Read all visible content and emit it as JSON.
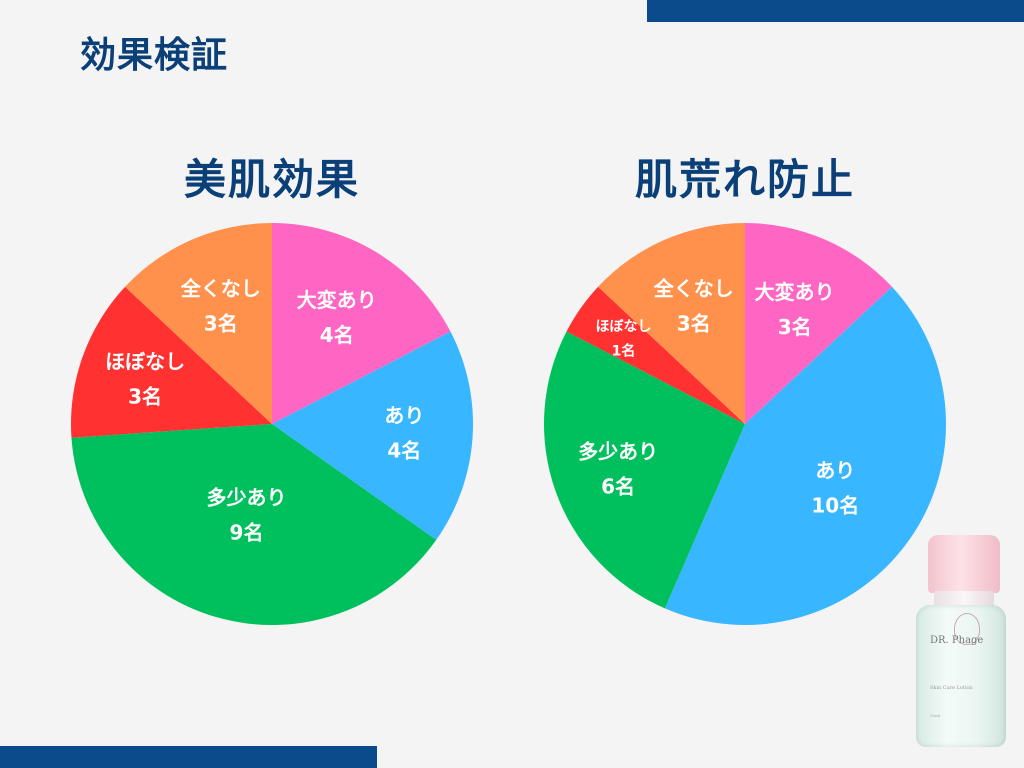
{
  "page_title": "効果検証",
  "chart_data": [
    {
      "type": "pie",
      "title": "美肌効果",
      "slices": [
        {
          "label": "大変あり",
          "value": 4,
          "count_text": "4名",
          "color": "#ff66c4"
        },
        {
          "label": "あり",
          "value": 4,
          "count_text": "4名",
          "color": "#38b6ff"
        },
        {
          "label": "多少あり",
          "value": 9,
          "count_text": "9名",
          "color": "#00c05d"
        },
        {
          "label": "ほぼなし",
          "value": 3,
          "count_text": "3名",
          "color": "#ff3131"
        },
        {
          "label": "全くなし",
          "value": 3,
          "count_text": "3名",
          "color": "#ff914d"
        }
      ]
    },
    {
      "type": "pie",
      "title": "肌荒れ防止",
      "slices": [
        {
          "label": "大変あり",
          "value": 3,
          "count_text": "3名",
          "color": "#ff66c4"
        },
        {
          "label": "あり",
          "value": 10,
          "count_text": "10名",
          "color": "#38b6ff"
        },
        {
          "label": "多少あり",
          "value": 6,
          "count_text": "6名",
          "color": "#00c05d"
        },
        {
          "label": "ほぼなし",
          "value": 1,
          "count_text": "1名",
          "color": "#ff3131"
        },
        {
          "label": "全くなし",
          "value": 3,
          "count_text": "3名",
          "color": "#ff914d"
        }
      ]
    }
  ],
  "product": {
    "brand": "DR. Phage",
    "subtitle": "Skin Care Lotion",
    "volume": "50ml"
  },
  "colors": {
    "accent_bar": "#0b4a8b",
    "title": "#0b3f78"
  }
}
